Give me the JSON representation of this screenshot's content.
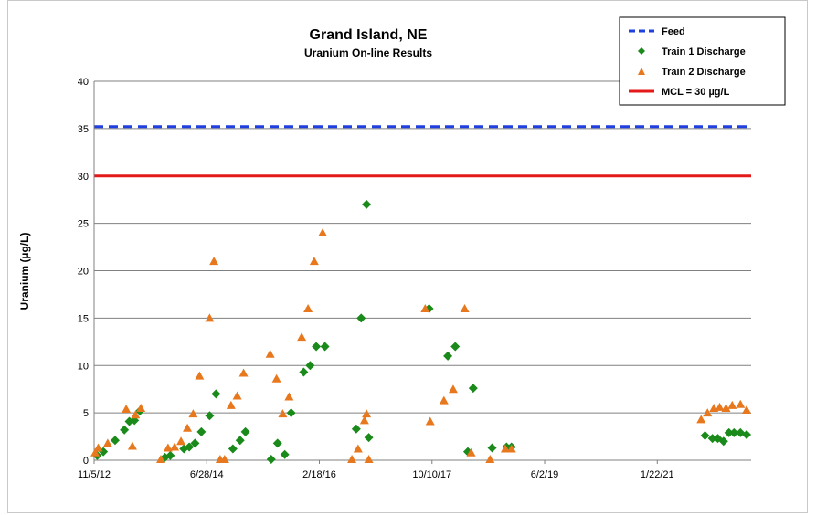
{
  "chart_data": {
    "type": "scatter",
    "title": "Grand Island, NE",
    "subtitle": "Uranium On-line Results",
    "xlabel": "",
    "ylabel": "Uranium (µg/L)",
    "x_ticks": [
      "11/5/12",
      "6/28/14",
      "2/18/16",
      "10/10/17",
      "6/2/19",
      "1/22/21"
    ],
    "xlim": [
      "2012-11-05",
      "2021-08-01"
    ],
    "ylim": [
      0,
      40
    ],
    "y_ticks": [
      0,
      5,
      10,
      15,
      20,
      25,
      30,
      35,
      40
    ],
    "grid": "horizontal",
    "legend_position": "top-right",
    "reference_lines": [
      {
        "name": "Feed",
        "value": 35.2,
        "color": "#1f3fe0",
        "style": "dashed"
      },
      {
        "name": "MCL = 30 µg/L",
        "value": 30,
        "color": "#e41a1a",
        "style": "solid"
      }
    ],
    "series": [
      {
        "name": "Train 1 Discharge",
        "marker": "diamond",
        "color": "#1a8a1a",
        "points": [
          [
            "2012-11-20",
            0.5
          ],
          [
            "2012-12-20",
            0.9
          ],
          [
            "2013-02-15",
            2.1
          ],
          [
            "2013-04-01",
            3.2
          ],
          [
            "2013-04-25",
            4.1
          ],
          [
            "2013-05-20",
            4.2
          ],
          [
            "2013-06-15",
            5.2
          ],
          [
            "2013-10-15",
            0.3
          ],
          [
            "2013-11-10",
            0.5
          ],
          [
            "2014-01-15",
            1.2
          ],
          [
            "2014-02-10",
            1.4
          ],
          [
            "2014-03-10",
            1.8
          ],
          [
            "2014-04-10",
            3.0
          ],
          [
            "2014-05-20",
            4.7
          ],
          [
            "2014-06-20",
            7.0
          ],
          [
            "2014-09-10",
            1.2
          ],
          [
            "2014-10-15",
            2.1
          ],
          [
            "2014-11-10",
            3.0
          ],
          [
            "2015-03-15",
            0.1
          ],
          [
            "2015-04-15",
            1.8
          ],
          [
            "2015-05-20",
            0.6
          ],
          [
            "2015-06-20",
            5.0
          ],
          [
            "2015-08-20",
            9.3
          ],
          [
            "2015-09-20",
            10.0
          ],
          [
            "2015-10-20",
            12.0
          ],
          [
            "2015-12-01",
            12.0
          ],
          [
            "2016-05-01",
            3.3
          ],
          [
            "2016-05-25",
            15.0
          ],
          [
            "2016-06-20",
            27.0
          ],
          [
            "2016-07-01",
            2.4
          ],
          [
            "2017-04-20",
            16.0
          ],
          [
            "2017-07-20",
            11.0
          ],
          [
            "2017-08-25",
            12.0
          ],
          [
            "2017-10-25",
            0.9
          ],
          [
            "2017-11-20",
            7.6
          ],
          [
            "2018-02-20",
            1.3
          ],
          [
            "2018-05-01",
            1.4
          ],
          [
            "2018-05-25",
            1.4
          ],
          [
            "2020-12-20",
            2.6
          ],
          [
            "2021-01-25",
            2.3
          ],
          [
            "2021-02-20",
            2.3
          ],
          [
            "2021-03-20",
            2.0
          ],
          [
            "2021-04-15",
            2.9
          ],
          [
            "2021-05-10",
            2.9
          ],
          [
            "2021-06-10",
            2.9
          ],
          [
            "2021-07-10",
            2.7
          ]
        ]
      },
      {
        "name": "Train 2 Discharge",
        "marker": "triangle",
        "color": "#e8781e",
        "points": [
          [
            "2012-11-10",
            0.8
          ],
          [
            "2012-11-25",
            1.3
          ],
          [
            "2013-01-10",
            1.8
          ],
          [
            "2013-04-10",
            5.4
          ],
          [
            "2013-05-10",
            1.5
          ],
          [
            "2013-05-25",
            4.8
          ],
          [
            "2013-06-20",
            5.5
          ],
          [
            "2013-09-25",
            0.1
          ],
          [
            "2013-10-30",
            1.3
          ],
          [
            "2013-12-01",
            1.4
          ],
          [
            "2014-01-01",
            2.0
          ],
          [
            "2014-02-01",
            3.4
          ],
          [
            "2014-03-01",
            4.9
          ],
          [
            "2014-04-01",
            8.9
          ],
          [
            "2014-05-20",
            15.0
          ],
          [
            "2014-06-10",
            21.0
          ],
          [
            "2014-07-10",
            0.1
          ],
          [
            "2014-08-01",
            0.1
          ],
          [
            "2014-09-01",
            5.8
          ],
          [
            "2014-10-01",
            6.8
          ],
          [
            "2014-11-01",
            9.2
          ],
          [
            "2015-03-10",
            11.2
          ],
          [
            "2015-04-10",
            8.6
          ],
          [
            "2015-05-10",
            4.9
          ],
          [
            "2015-06-10",
            6.7
          ],
          [
            "2015-08-10",
            13.0
          ],
          [
            "2015-09-10",
            16.0
          ],
          [
            "2015-10-10",
            21.0
          ],
          [
            "2015-11-20",
            24.0
          ],
          [
            "2016-04-10",
            0.1
          ],
          [
            "2016-05-10",
            1.2
          ],
          [
            "2016-06-10",
            4.2
          ],
          [
            "2016-06-20",
            4.9
          ],
          [
            "2016-07-01",
            0.1
          ],
          [
            "2017-04-01",
            16.0
          ],
          [
            "2017-04-25",
            4.1
          ],
          [
            "2017-07-01",
            6.3
          ],
          [
            "2017-08-15",
            7.5
          ],
          [
            "2017-10-10",
            16.0
          ],
          [
            "2017-11-10",
            0.8
          ],
          [
            "2018-02-10",
            0.1
          ],
          [
            "2018-04-25",
            1.2
          ],
          [
            "2018-05-25",
            1.2
          ],
          [
            "2020-12-01",
            4.3
          ],
          [
            "2021-01-01",
            5.0
          ],
          [
            "2021-02-01",
            5.5
          ],
          [
            "2021-03-01",
            5.6
          ],
          [
            "2021-04-01",
            5.5
          ],
          [
            "2021-05-01",
            5.8
          ],
          [
            "2021-06-10",
            5.9
          ],
          [
            "2021-07-10",
            5.3
          ]
        ]
      }
    ]
  },
  "legend": {
    "items": [
      {
        "label": "Feed",
        "symbol": "dashed-line",
        "color": "#1f3fe0"
      },
      {
        "label": "Train 1 Discharge",
        "symbol": "diamond",
        "color": "#1a8a1a"
      },
      {
        "label": "Train 2 Discharge",
        "symbol": "triangle",
        "color": "#e8781e"
      },
      {
        "label": "MCL = 30 µg/L",
        "symbol": "solid-line",
        "color": "#e41a1a"
      }
    ]
  }
}
